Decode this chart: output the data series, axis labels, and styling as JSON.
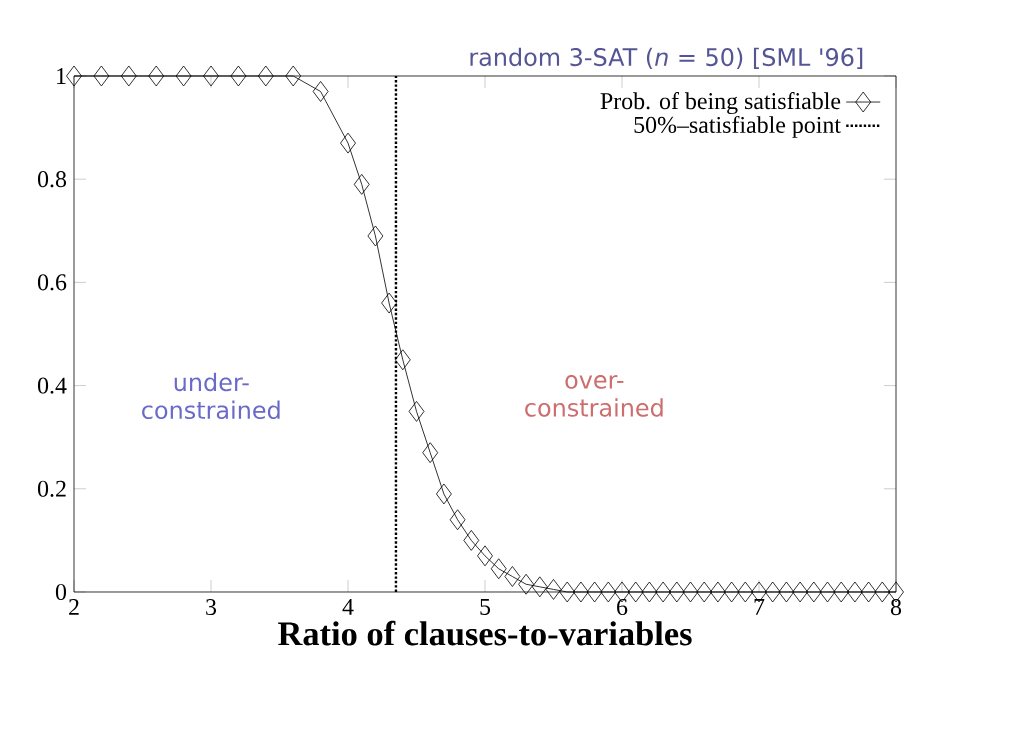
{
  "chart_data": {
    "type": "line",
    "title": "random 3-SAT (*n* = 50) [SML '96]",
    "xlabel": "Ratio of clauses-to-variables",
    "x": [
      2.0,
      2.2,
      2.4,
      2.6,
      2.8,
      3.0,
      3.2,
      3.4,
      3.6,
      3.8,
      4.0,
      4.1,
      4.2,
      4.3,
      4.4,
      4.5,
      4.6,
      4.7,
      4.8,
      4.9,
      5.0,
      5.1,
      5.2,
      5.3,
      5.4,
      5.5,
      5.6,
      5.7,
      5.8,
      5.9,
      6.0,
      6.1,
      6.2,
      6.3,
      6.4,
      6.5,
      6.6,
      6.7,
      6.8,
      6.9,
      7.0,
      7.1,
      7.2,
      7.3,
      7.4,
      7.5,
      7.6,
      7.7,
      7.8,
      7.9,
      8.0
    ],
    "series": [
      {
        "name": "Prob. of being satisfiable",
        "color": "#000000",
        "values": [
          1,
          1,
          1,
          1,
          1,
          1,
          1,
          1,
          1,
          0.97,
          0.87,
          0.79,
          0.69,
          0.56,
          0.45,
          0.35,
          0.27,
          0.19,
          0.14,
          0.1,
          0.07,
          0.045,
          0.03,
          0.015,
          0.01,
          0.005,
          0,
          0,
          0,
          0,
          0,
          0,
          0,
          0,
          0,
          0,
          0,
          0,
          0,
          0,
          0,
          0,
          0,
          0,
          0,
          0,
          0,
          0,
          0,
          0,
          0
        ]
      },
      {
        "name": "50%–satisfiable point",
        "color": "#000000",
        "x": [
          4.35,
          4.35
        ],
        "values": [
          0,
          1
        ],
        "marker": "none",
        "line_style": "dotted"
      }
    ],
    "marker": "diamond",
    "line_style": "solid",
    "xlim": [
      2,
      8
    ],
    "xticks": [
      2,
      3,
      4,
      5,
      6,
      7,
      8
    ],
    "ylim": [
      0,
      1
    ],
    "yticks": [
      0,
      0.2,
      0.4,
      0.6,
      0.8,
      1
    ],
    "annotations": [
      "under-constrained",
      "over-constrained"
    ],
    "legend": "top right",
    "grid": false
  }
}
